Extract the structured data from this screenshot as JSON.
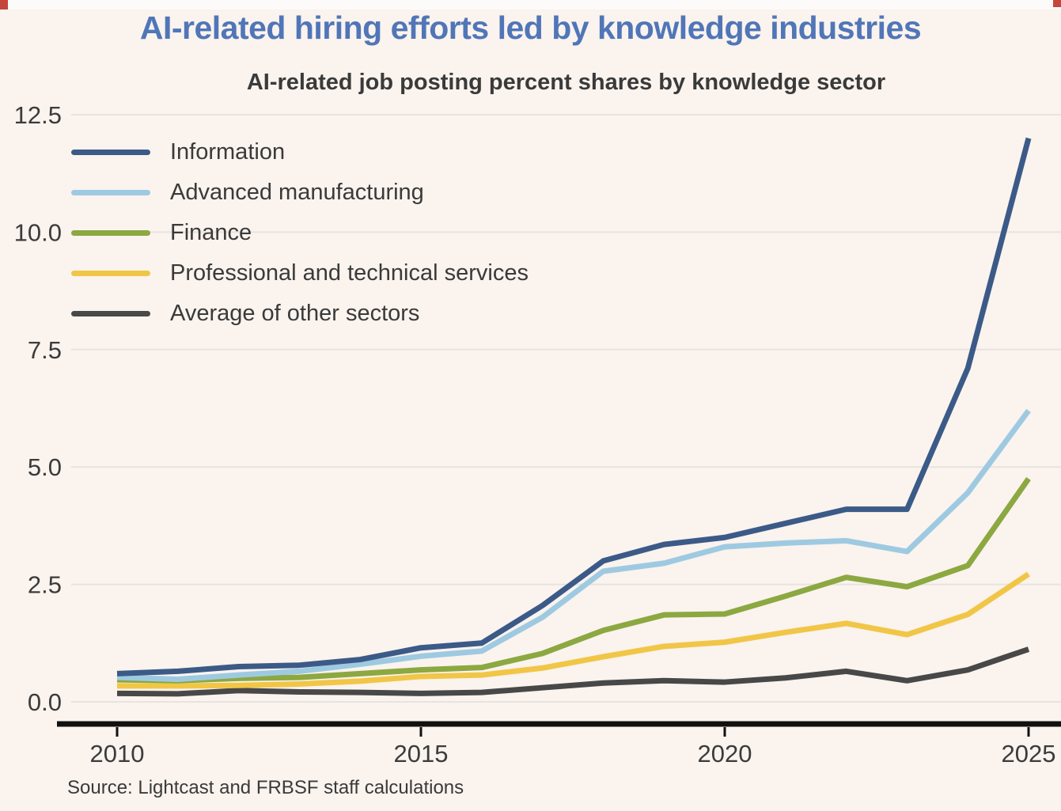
{
  "page": {
    "title": "AI-related hiring efforts led by knowledge industries",
    "subtitle": "AI-related job posting percent shares by knowledge sector",
    "source": "Source: Lightcast and FRBSF staff calculations"
  },
  "colors": {
    "background": "#FAF3EE",
    "title": "#5076B8",
    "text": "#3B3B3B",
    "gridline": "#E8E3DF",
    "axis": "#111111",
    "red_mark": "#C5473B"
  },
  "chart_data": {
    "type": "line",
    "title": "AI-related hiring efforts led by knowledge industries",
    "subtitle": "AI-related job posting percent shares by knowledge sector",
    "xlabel": "",
    "ylabel": "",
    "x": [
      2010,
      2011,
      2012,
      2013,
      2014,
      2015,
      2016,
      2017,
      2018,
      2019,
      2020,
      2021,
      2022,
      2023,
      2024,
      2025
    ],
    "series": [
      {
        "name": "Information",
        "color": "#3B5A87",
        "values": [
          0.6,
          0.65,
          0.75,
          0.78,
          0.9,
          1.15,
          1.25,
          2.05,
          3.0,
          3.35,
          3.5,
          3.8,
          4.1,
          4.1,
          7.1,
          12.0
        ]
      },
      {
        "name": "Advanced manufacturing",
        "color": "#9ECAE1",
        "values": [
          0.52,
          0.48,
          0.57,
          0.65,
          0.8,
          0.97,
          1.08,
          1.8,
          2.78,
          2.95,
          3.3,
          3.38,
          3.43,
          3.2,
          4.45,
          6.2
        ]
      },
      {
        "name": "Finance",
        "color": "#8CA841",
        "values": [
          0.47,
          0.45,
          0.5,
          0.52,
          0.6,
          0.68,
          0.73,
          1.03,
          1.52,
          1.85,
          1.87,
          2.25,
          2.65,
          2.45,
          2.9,
          4.75
        ]
      },
      {
        "name": "Professional and technical services",
        "color": "#F1C647",
        "values": [
          0.34,
          0.34,
          0.35,
          0.38,
          0.44,
          0.54,
          0.57,
          0.72,
          0.96,
          1.18,
          1.27,
          1.48,
          1.67,
          1.43,
          1.86,
          2.72
        ]
      },
      {
        "name": "Average of other sectors",
        "color": "#484848",
        "values": [
          0.18,
          0.17,
          0.24,
          0.21,
          0.2,
          0.18,
          0.2,
          0.3,
          0.4,
          0.45,
          0.42,
          0.51,
          0.65,
          0.45,
          0.68,
          1.12
        ]
      }
    ],
    "xticks": [
      "2010",
      "2015",
      "2020",
      "2025"
    ],
    "yticks": [
      0.0,
      2.5,
      5.0,
      7.5,
      10.0,
      12.5
    ],
    "ytick_labels": [
      "0.0",
      "2.5",
      "5.0",
      "7.5",
      "10.0",
      "12.5"
    ],
    "xlim": [
      2010,
      2025
    ],
    "ylim": [
      0,
      12.5
    ],
    "grid": "horizontal",
    "legend_position": "top-left-inside"
  }
}
